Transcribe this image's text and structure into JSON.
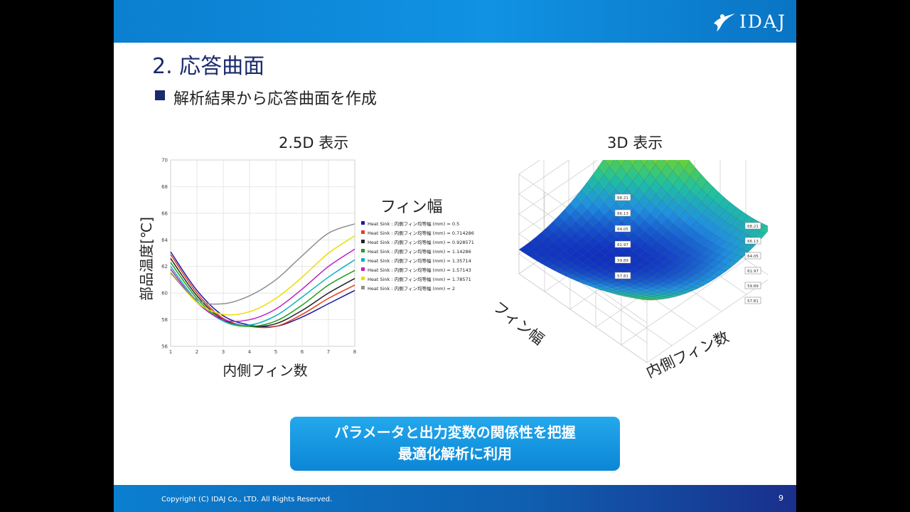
{
  "slide": {
    "logo_text": "IDAJ",
    "title": "2.  応答曲面",
    "bullet": "解析結果から応答曲面を作成",
    "caption_left": "2.5D 表示",
    "caption_right": "3D 表示",
    "callout_line1": "パラメータと出力変数の関係性を把握",
    "callout_line2": "最適化解析に利用",
    "footer_copyright": "Copyright (C)  IDAJ Co., LTD. All Rights Reserved.",
    "page_number": "9"
  },
  "chart_data": [
    {
      "type": "line",
      "xlabel": "内側フィン数",
      "ylabel": "部品温度[℃]",
      "legend_title": "フィン幅",
      "legend_placement": "right",
      "grid": true,
      "xlim": [
        1,
        8
      ],
      "ylim": [
        56,
        70
      ],
      "x_ticks": [
        "1",
        "2",
        "3",
        "4",
        "5",
        "6",
        "7",
        "8"
      ],
      "y_ticks": [
        "56",
        "58",
        "60",
        "62",
        "64",
        "66",
        "68",
        "70"
      ],
      "x": [
        1,
        2,
        3,
        4,
        5,
        6,
        7,
        8
      ],
      "series": [
        {
          "name": "Heat Sink : 内側フィン均等幅 (mm) = 0.5",
          "color": "#1a1aa8",
          "values": [
            63.1,
            60.2,
            58.3,
            57.6,
            57.5,
            58.2,
            59.2,
            60.2
          ]
        },
        {
          "name": "Heat Sink : 内側フィン均等幅 (mm) = 0.714286",
          "color": "#e04020",
          "values": [
            62.9,
            60.0,
            58.1,
            57.5,
            57.5,
            58.4,
            59.6,
            60.6
          ]
        },
        {
          "name": "Heat Sink : 内側フィン均等幅 (mm) = 0.928571",
          "color": "#222222",
          "values": [
            62.6,
            59.8,
            58.0,
            57.5,
            57.7,
            58.7,
            60.0,
            61.1
          ]
        },
        {
          "name": "Heat Sink : 内側フィン均等幅 (mm) = 1.14286",
          "color": "#20a020",
          "values": [
            62.3,
            59.6,
            57.9,
            57.5,
            57.9,
            59.1,
            60.6,
            61.7
          ]
        },
        {
          "name": "Heat Sink : 内側フィン均等幅 (mm) = 1.35714",
          "color": "#10b0c0",
          "values": [
            62.0,
            59.4,
            57.9,
            57.6,
            58.3,
            59.7,
            61.2,
            62.5
          ]
        },
        {
          "name": "Heat Sink : 内側フィン均等幅 (mm) = 1.57143",
          "color": "#c020c0",
          "values": [
            61.8,
            59.3,
            58.0,
            58.0,
            58.8,
            60.3,
            62.0,
            63.3
          ]
        },
        {
          "name": "Heat Sink : 内側フィン均等幅 (mm) = 1.78571",
          "color": "#e8e000",
          "values": [
            61.6,
            59.3,
            58.4,
            58.6,
            59.6,
            61.2,
            63.0,
            64.3
          ]
        },
        {
          "name": "Heat Sink : 内側フィン均等幅 (mm) = 2",
          "color": "#909090",
          "values": [
            61.5,
            59.5,
            59.2,
            59.8,
            61.0,
            62.8,
            64.5,
            65.2
          ]
        }
      ]
    },
    {
      "type": "surface",
      "xlabel": "内側フィン数",
      "ylabel": "フィン幅",
      "z_ticks_left": [
        "68.21",
        "66.13",
        "64.05",
        "61.97",
        "59.89",
        "57.81"
      ],
      "z_ticks_right": [
        "68.21",
        "66.13",
        "64.05",
        "61.97",
        "59.89",
        "57.81"
      ],
      "colormap": [
        "#1030c0",
        "#2090e0",
        "#20c0a0",
        "#60d040",
        "#e0e020",
        "#f0a020",
        "#e05010"
      ]
    }
  ]
}
